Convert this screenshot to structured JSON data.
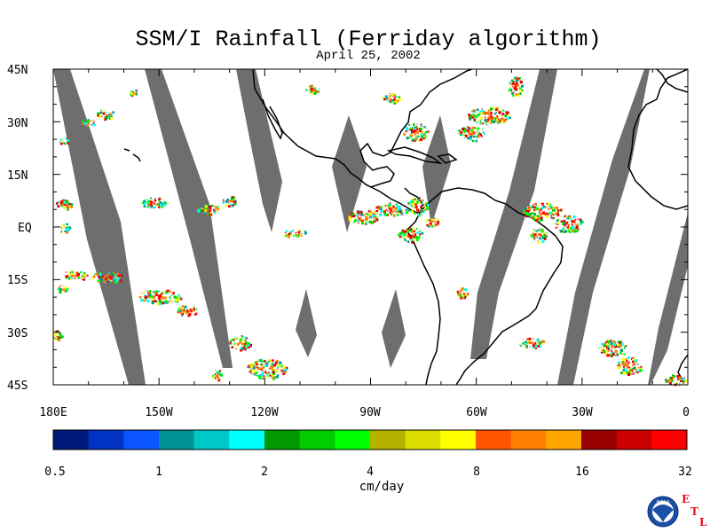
{
  "title": "SSM/I Rainfall (Ferriday algorithm)",
  "subtitle": "April 25, 2002",
  "map": {
    "lat_labels": [
      "45N",
      "30N",
      "15N",
      "EQ",
      "15S",
      "30S",
      "45S"
    ],
    "lon_labels": [
      "180E",
      "150W",
      "120W",
      "90W",
      "60W",
      "30W",
      "0"
    ],
    "swath_color": "#6e6e6e",
    "coast_color": "#000000"
  },
  "colorbar": {
    "unit": "cm/day",
    "labels": [
      "0.5",
      "1",
      "2",
      "4",
      "8",
      "16",
      "32"
    ],
    "colors": [
      "#001a7a",
      "#0033c4",
      "#0a55ff",
      "#009494",
      "#00c8c8",
      "#00ffff",
      "#009900",
      "#00cc00",
      "#00ff00",
      "#b3b300",
      "#dddd00",
      "#ffff00",
      "#ff5500",
      "#ff8000",
      "#ffa500",
      "#990000",
      "#cc0000",
      "#ff0000"
    ]
  },
  "logo": {
    "noaa_text": "NOAA",
    "etl_letters": [
      "E",
      "T",
      "L"
    ],
    "etl_color": "#e8101a"
  }
}
